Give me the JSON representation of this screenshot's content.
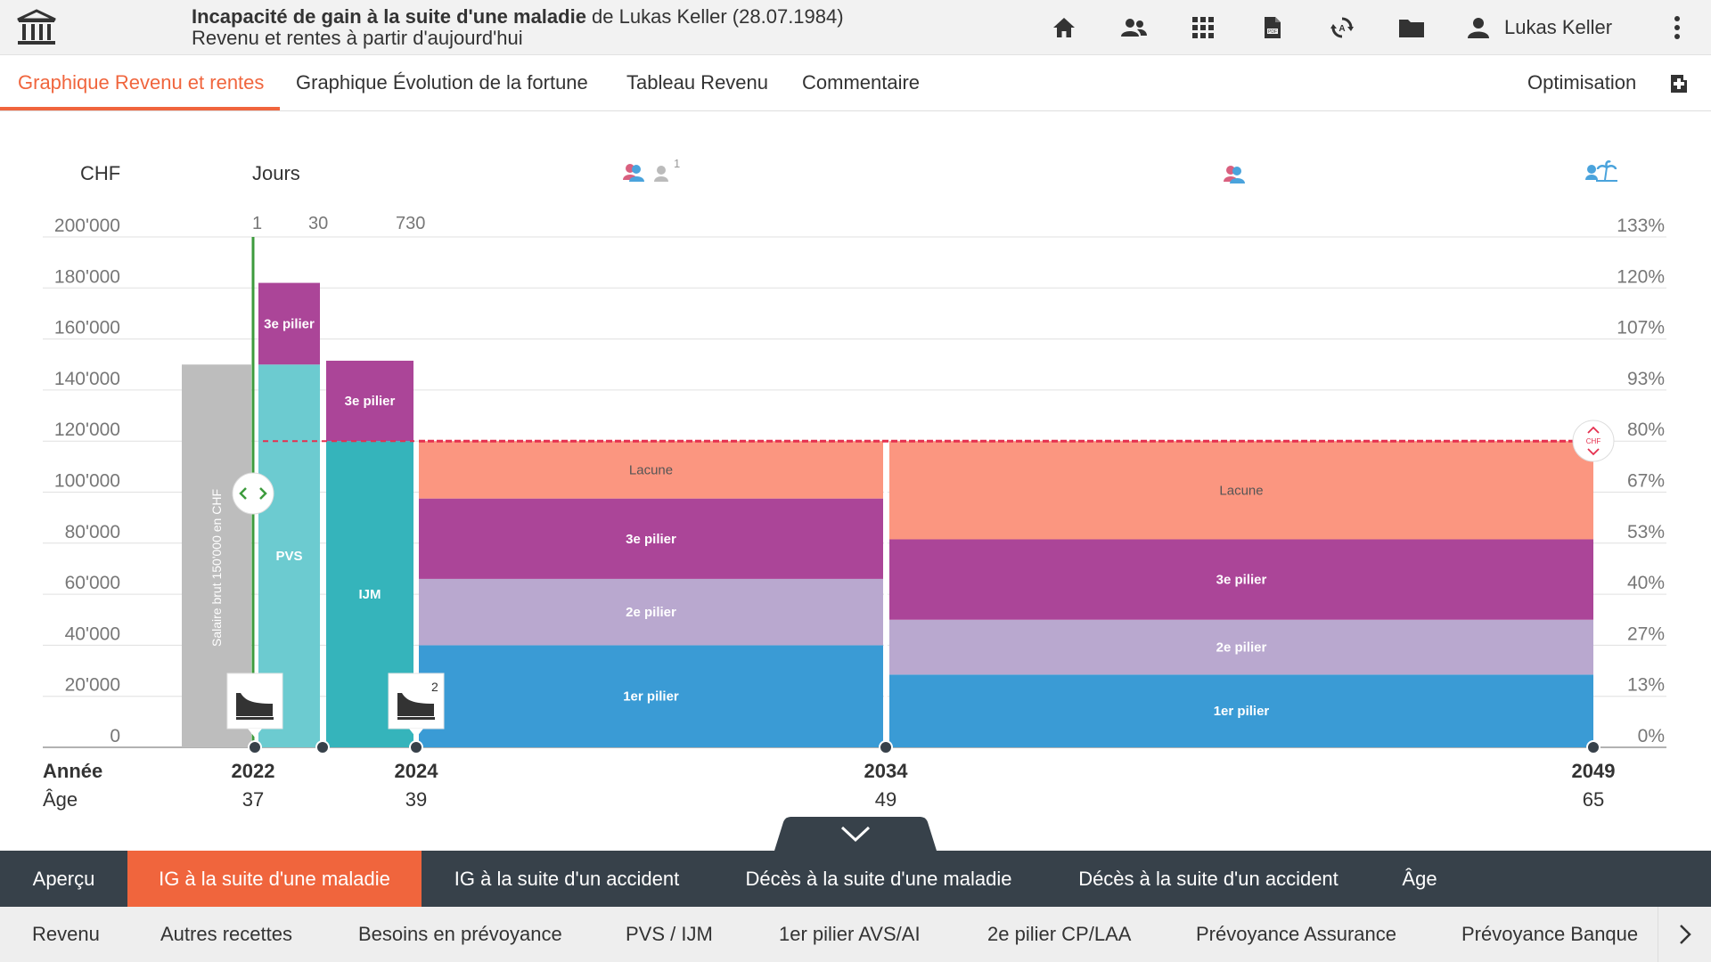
{
  "header": {
    "title_bold": "Incapacité de gain à la suite d'une maladie",
    "title_rest": " de Lukas Keller (28.07.1984)",
    "subtitle": "Revenu et rentes à partir d'aujourd'hui",
    "user_name": "Lukas Keller",
    "icons": [
      "home-icon",
      "people-icon",
      "grid-icon",
      "pdf-icon",
      "sync-icon",
      "folder-icon",
      "user-icon",
      "kebab-icon"
    ]
  },
  "tabs": {
    "items": [
      "Graphique Revenu et rentes",
      "Graphique Évolution de la fortune",
      "Tableau Revenu",
      "Commentaire"
    ],
    "active_index": 0,
    "optimisation": "Optimisation"
  },
  "chart": {
    "y_left_title": "CHF",
    "days_title": "Jours",
    "days_ticks": [
      "1",
      "30",
      "730"
    ],
    "y_left_ticks": [
      "200'000",
      "180'000",
      "160'000",
      "140'000",
      "120'000",
      "100'000",
      "80'000",
      "60'000",
      "40'000",
      "20'000",
      "0"
    ],
    "y_right_ticks": [
      "133%",
      "120%",
      "107%",
      "93%",
      "80%",
      "67%",
      "53%",
      "40%",
      "27%",
      "13%",
      "0%"
    ],
    "salary_label": "Salaire brut 150'000 en CHF",
    "person_badge": "1",
    "marker_badge": "2",
    "threshold_badge": "CHF",
    "row_year_label": "Année",
    "row_age_label": "Âge",
    "years": [
      "2022",
      "2024",
      "2034",
      "2049"
    ],
    "ages": [
      "37",
      "39",
      "49",
      "65"
    ],
    "labels": {
      "pillar3": "3e pilier",
      "pvs": "PVS",
      "ijm": "IJM",
      "lacune": "Lacune",
      "pillar2": "2e pilier",
      "pillar1": "1er pilier"
    }
  },
  "chart_data": {
    "type": "bar",
    "ylim": [
      0,
      200000
    ],
    "threshold": 120000,
    "salary": 150000,
    "colors": {
      "salary": "#bdbdbd",
      "pvs": "#6ccbd0",
      "ijm": "#35b4bb",
      "pillar3": "#ab4598",
      "pillar2": "#b9a8cf",
      "pillar1": "#3a9bd5",
      "lacune": "#fb9680",
      "threshold": "#e5304f",
      "today": "#3d9b3d"
    },
    "segments": [
      {
        "period": "1-30",
        "stack": [
          {
            "name": "PVS",
            "value": 150000
          },
          {
            "name": "3e pilier",
            "value": 32000
          }
        ]
      },
      {
        "period": "30-730",
        "stack": [
          {
            "name": "IJM",
            "value": 120000
          },
          {
            "name": "3e pilier",
            "value": 31500
          }
        ]
      },
      {
        "period": "2024-2034",
        "stack": [
          {
            "name": "1er pilier",
            "value": 40000
          },
          {
            "name": "2e pilier",
            "value": 26000
          },
          {
            "name": "3e pilier",
            "value": 31500
          },
          {
            "name": "Lacune",
            "value": 22500
          }
        ]
      },
      {
        "period": "2034-2049",
        "stack": [
          {
            "name": "1er pilier",
            "value": 28500
          },
          {
            "name": "2e pilier",
            "value": 21500
          },
          {
            "name": "3e pilier",
            "value": 31500
          },
          {
            "name": "Lacune",
            "value": 38500
          }
        ]
      }
    ]
  },
  "bottom_nav": {
    "primary": [
      "Aperçu",
      "IG à la suite d'une maladie",
      "IG à la suite d'un accident",
      "Décès à la suite d'une maladie",
      "Décès à la suite d'un accident",
      "Âge"
    ],
    "primary_active": 1,
    "secondary": [
      "Revenu",
      "Autres recettes",
      "Besoins en prévoyance",
      "PVS / IJM",
      "1er pilier AVS/AI",
      "2e pilier CP/LAA",
      "Prévoyance Assurance",
      "Prévoyance Banque"
    ]
  }
}
